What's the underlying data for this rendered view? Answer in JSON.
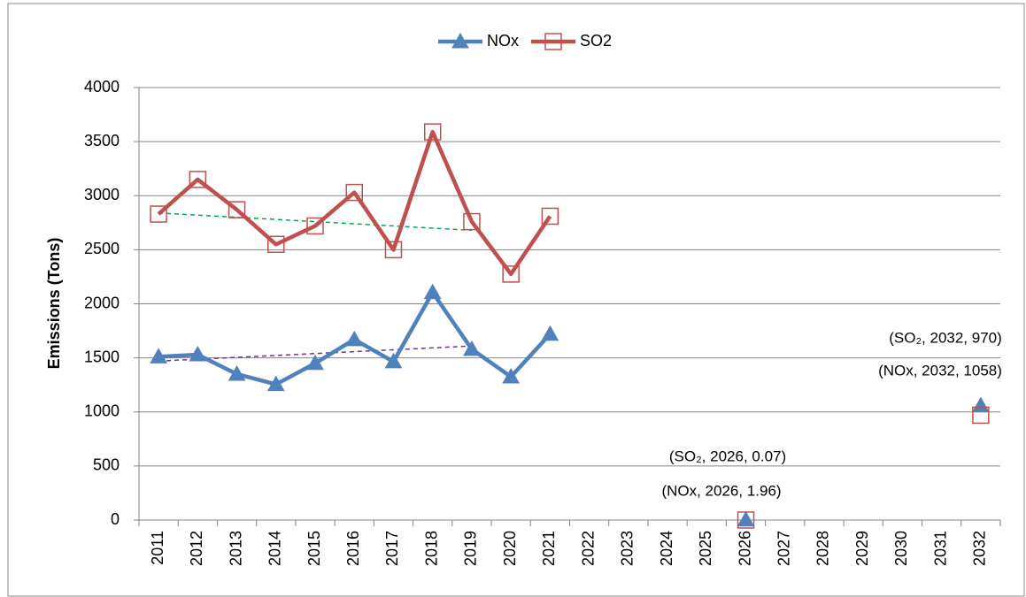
{
  "chart_data": {
    "type": "line",
    "y_label": "Emissions (Tons)",
    "categories": [
      "2011",
      "2012",
      "2013",
      "2014",
      "2015",
      "2016",
      "2017",
      "2018",
      "2019",
      "2020",
      "2021",
      "2022",
      "2023",
      "2024",
      "2025",
      "2026",
      "2027",
      "2028",
      "2029",
      "2030",
      "2031",
      "2032"
    ],
    "series": [
      {
        "name": "NOx",
        "color": "#4f81bd",
        "marker": "triangle",
        "values": [
          1510,
          1530,
          1350,
          1255,
          1450,
          1670,
          1465,
          2105,
          1580,
          1325,
          1720,
          null,
          null,
          null,
          null,
          1.96,
          null,
          null,
          null,
          null,
          null,
          1058
        ]
      },
      {
        "name": "SO2",
        "color": "#c0504d",
        "marker": "square",
        "values": [
          2830,
          3150,
          2870,
          2550,
          2720,
          3030,
          2500,
          3590,
          2760,
          2275,
          2810,
          null,
          null,
          null,
          null,
          0.07,
          null,
          null,
          null,
          null,
          null,
          970
        ]
      }
    ],
    "trendlines": [
      {
        "color": "#7030a0",
        "x": [
          2011,
          2019
        ],
        "values": [
          1470,
          1610
        ]
      },
      {
        "color": "#00a651",
        "x": [
          2011,
          2019
        ],
        "values": [
          2840,
          2680
        ]
      }
    ],
    "annotations": [
      "(SO₂, 2032, 970)",
      "(NOx, 2032, 1058)",
      "(SO₂, 2026, 0.07)",
      "(NOx, 2026, 1.96)"
    ],
    "ylim": [
      0,
      4000
    ],
    "yticks": [
      0,
      500,
      1000,
      1500,
      2000,
      2500,
      3000,
      3500,
      4000
    ],
    "grid": true,
    "legend": "top"
  }
}
